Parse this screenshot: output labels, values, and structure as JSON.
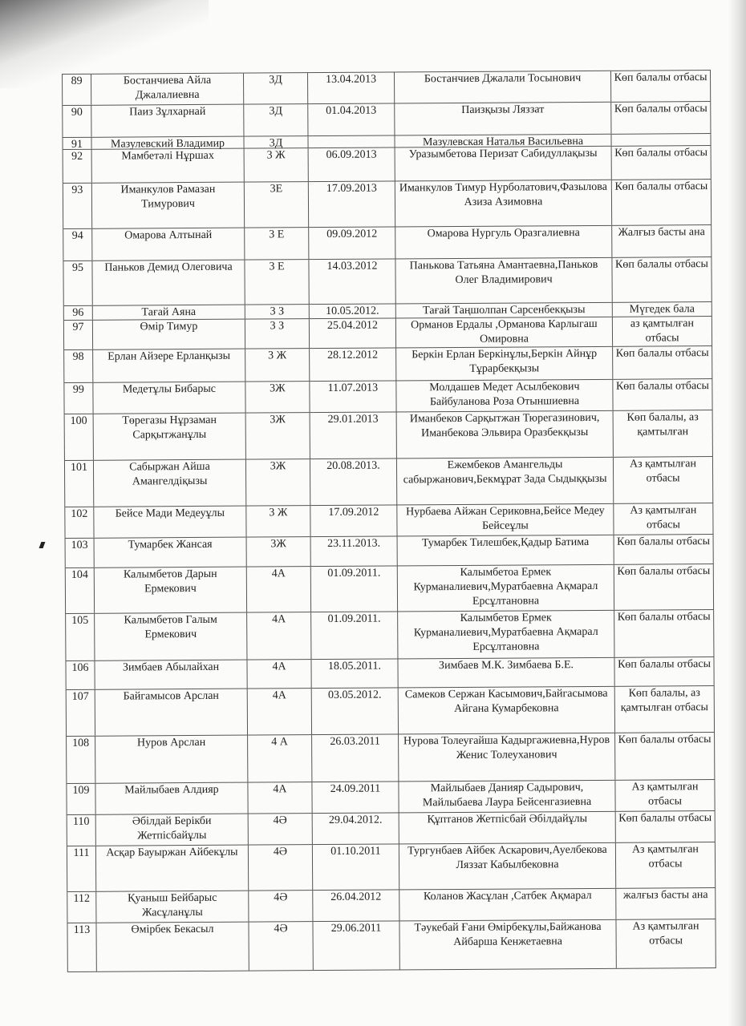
{
  "rows": [
    [
      "89",
      "Бостанчиева Айла Джалалиевна",
      "3Д",
      "13.04.2013",
      "Бостанчиев Джалали Тосынович",
      "Көп балалы отбасы"
    ],
    [
      "90",
      "Паиз Зұлхарнай",
      "3Д",
      "01.04.2013",
      "Паизқызы Ляззат",
      "Көп балалы отбасы"
    ],
    [
      "91",
      "Мазулевский Владимир",
      "3Д",
      "",
      "Мазулевская Наталья Васильевна",
      ""
    ],
    [
      "92",
      "Мамбетәлі Нұршах",
      "3 Ж",
      "06.09.2013",
      "Уразымбетова Перизат Сабидуллақызы",
      "Көп балалы отбасы"
    ],
    [
      "93",
      "Иманкулов Рамазан Тимурович",
      "3Е",
      "17.09.2013",
      "Иманкулов Тимур Нурболатович,Фазылова Азиза Азимовна",
      "Көп балалы отбасы"
    ],
    [
      "94",
      "Омарова  Алтынай",
      "3 Е",
      "09.09.2012",
      "Омарова Нургуль Оразгалиевна",
      "Жалғыз басты ана"
    ],
    [
      "95",
      "Паньков Демид Олеговича",
      "3 Е",
      "14.03.2012",
      "Панькова Татьяна Амантаевна,Паньков Олег Владимирович",
      "Көп балалы отбасы"
    ],
    [
      "96",
      "Тағай Аяна",
      "3 З",
      "10.05.2012.",
      "Тағай Таңшолпан Сарсенбекқызы",
      "Мүгедек бала"
    ],
    [
      "97",
      "Өмір Тимур",
      "3 З",
      "25.04.2012",
      "Орманов Ердалы ,Орманова Карлыгаш Омировна",
      "аз қамтылған отбасы"
    ],
    [
      "98",
      "Ерлан Айзере Ерланқызы",
      "3 Ж",
      "28.12.2012",
      "Беркін Ерлан Беркінұлы,Беркін Айнұр Тұрарбекқызы",
      "Көп балалы отбасы"
    ],
    [
      "99",
      "Медетұлы Бибарыс",
      "3Ж",
      "11.07.2013",
      "Молдашев Медет Асылбекович Байбуланова Роза Отыншиевна",
      "Көп балалы отбасы"
    ],
    [
      "100",
      "Төрегазы Нұрзаман Сарқытжанұлы",
      "3Ж",
      "29.01.2013",
      "Иманбеков Сарқытжан Тюрегазинович, Иманбекова Эльвира Оразбекқызы",
      "Көп балалы, аз қамтылған"
    ],
    [
      "101",
      "Сабыржан Айша Амангелдіқызы",
      "3Ж",
      "20.08.2013.",
      "Ежембеков Амангельды сабыржанович,Бекмұрат Зада Сыдыққызы",
      "Аз қамтылған отбасы"
    ],
    [
      "102",
      "Бейсе Мади Медеуұлы",
      "3 Ж",
      "17.09.2012",
      "Нурбаева Айжан Сериковна,Бейсе Медеу Бейсеұлы",
      "Аз қамтылған отбасы"
    ],
    [
      "103",
      "Тумарбек Жансая",
      "3Ж",
      "23.11.2013.",
      "Тумарбек Тилешбек,Қадыр Батима",
      "Көп балалы отбасы"
    ],
    [
      "104",
      "Калымбетов Дарын Ермекович",
      "4А",
      "01.09.2011.",
      "Калымбетоа Ермек Курманалиевич,Муратбаевна Ақмарал Ерсұлтановна",
      "Көп балалы отбасы"
    ],
    [
      "105",
      "Калымбетов Галым Ермекович",
      "4А",
      "01.09.2011.",
      "Калымбетов Ермек Курманалиевич,Муратбаевна Ақмарал Ерсұлтановна",
      "Көп балалы отбасы"
    ],
    [
      "106",
      "Зимбаев Абылайхан",
      "4А",
      "18.05.2011.",
      "Зимбаев М.К.  Зимбаева Б.Е.",
      "Көп балалы отбасы"
    ],
    [
      "107",
      "Байгамысов Арслан",
      "4А",
      "03.05.2012.",
      "Самеков Сержан Касымович,Байгасымова Айгана Кумарбековна",
      "Көп балалы, аз қамтылған отбасы"
    ],
    [
      "108",
      "Нуров Арслан",
      "4 А",
      "26.03.2011",
      "Нурова Толеуғайша Кадыргажиевна,Нуров Женис Толеуханович",
      "Көп балалы отбасы"
    ],
    [
      "109",
      "Майлыбаев Алдияр",
      "4А",
      "24.09.2011",
      "Майлыбаев Данияр Садырович, Майлыбаева Лаура Бейсенгазиевна",
      "Аз қамтылған отбасы"
    ],
    [
      "110",
      "Әбілдай Берікби Жетпісбайұлы",
      "4Ә",
      "29.04.2012.",
      "Құптанов Жетпісбай Әбілдайұлы",
      "Көп балалы отбасы"
    ],
    [
      "111",
      "Асқар Бауыржан Айбекұлы",
      "4Ә",
      "01.10.2011",
      "Тургунбаев Айбек Аскарович,Ауелбекова Ляззат Кабылбековна",
      "Аз қамтылған отбасы"
    ],
    [
      "112",
      "Қуаныш Бейбарыс Жасұланұлы",
      "4Ә",
      "26.04.2012",
      "Коланов Жасұлан ,Сатбек Ақмарал",
      "жалғыз басты ана"
    ],
    [
      "113",
      "Өмірбек Бекасыл",
      "4Ә",
      "29.06.2011",
      "Тәукебай Ғани Өмірбекұлы,Байжанова Айбарша Кенжетаевна",
      "Аз қамтылған отбасы"
    ]
  ]
}
